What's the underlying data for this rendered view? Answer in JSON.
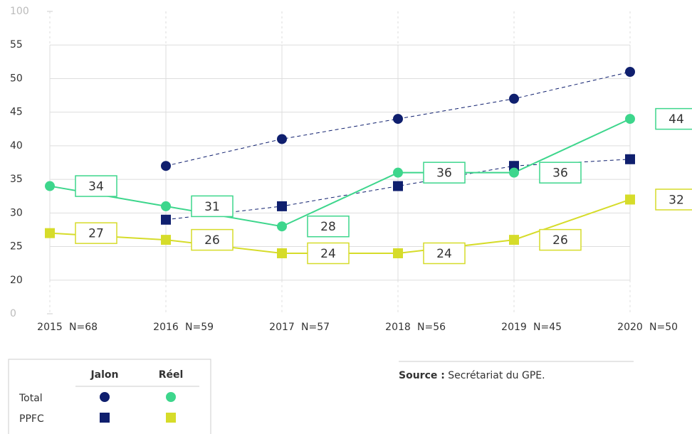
{
  "chart_data": {
    "type": "line",
    "categories": [
      "2015",
      "2016",
      "2017",
      "2018",
      "2019",
      "2020"
    ],
    "n_labels": [
      "N=68",
      "N=59",
      "N=57",
      "N=56",
      "N=45",
      "N=50"
    ],
    "ylim": [
      0,
      100
    ],
    "yticks": [
      0,
      20,
      25,
      30,
      35,
      40,
      45,
      50,
      55,
      100
    ],
    "grid": true,
    "series": [
      {
        "name": "Total",
        "group": "Jalon",
        "marker": "circle",
        "dashed": true,
        "color": "#0f1f6e",
        "values": [
          null,
          37,
          41,
          44,
          47,
          51
        ]
      },
      {
        "name": "PPFC",
        "group": "Jalon",
        "marker": "square",
        "dashed": true,
        "color": "#0f1f6e",
        "values": [
          null,
          29,
          31,
          34,
          37,
          38
        ]
      },
      {
        "name": "Total",
        "group": "Réel",
        "marker": "circle",
        "dashed": false,
        "labels": true,
        "color": "#3dd68c",
        "values": [
          34,
          31,
          28,
          36,
          36,
          44
        ]
      },
      {
        "name": "PPFC",
        "group": "Réel",
        "marker": "square",
        "dashed": false,
        "labels": true,
        "color": "#d6dc2a",
        "values": [
          27,
          26,
          24,
          24,
          26,
          32
        ]
      }
    ],
    "source_label": "Source :",
    "source": "Secrétariat du GPE."
  }
}
